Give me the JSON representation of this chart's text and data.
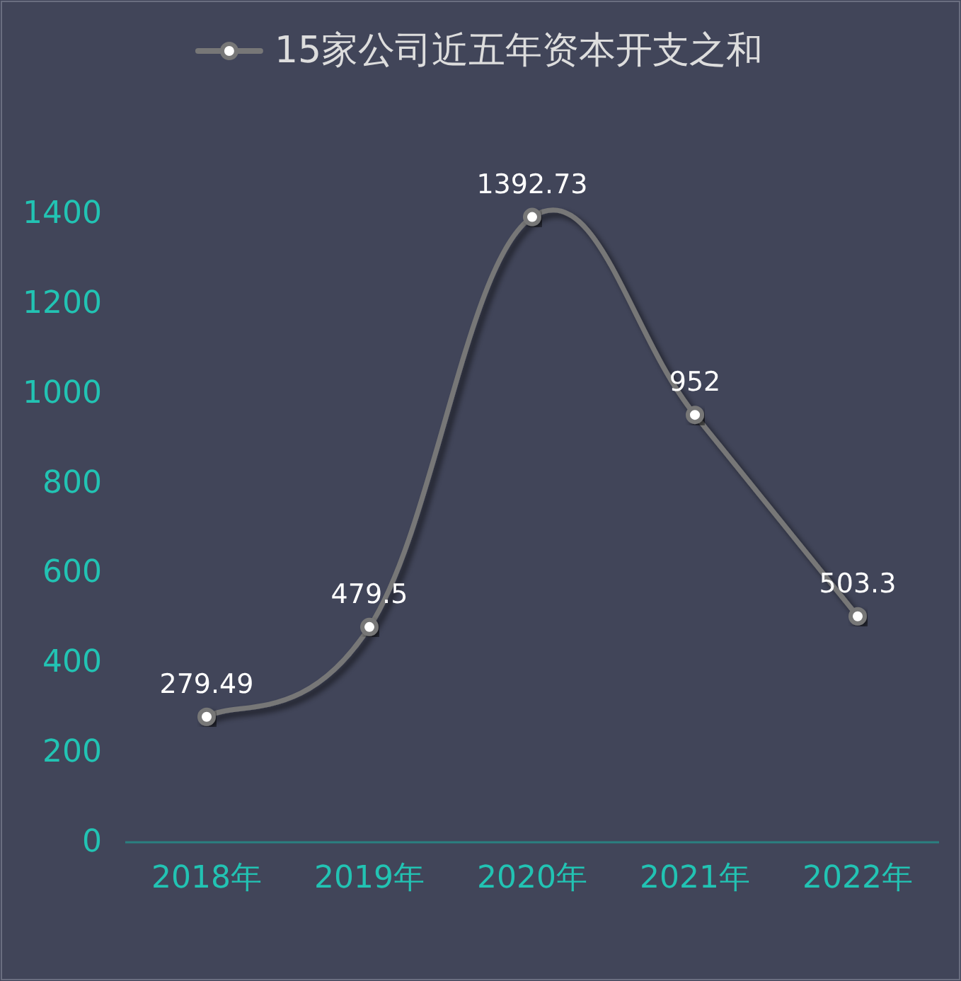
{
  "chart_data": {
    "type": "line",
    "categories": [
      "2018年",
      "2019年",
      "2020年",
      "2021年",
      "2022年"
    ],
    "series": [
      {
        "name": "15家公司近五年资本开支之和",
        "color": "#777777",
        "values": [
          279.49,
          479.5,
          1392.73,
          952,
          503.3
        ],
        "value_labels": [
          "279.49",
          "479.5",
          "1392.73",
          "952",
          "503.3"
        ]
      }
    ],
    "ylim": [
      0,
      1400
    ],
    "yticks": [
      0,
      200,
      400,
      600,
      800,
      1000,
      1200,
      1400
    ],
    "legend": "top",
    "marker": "circle",
    "grid": false
  }
}
